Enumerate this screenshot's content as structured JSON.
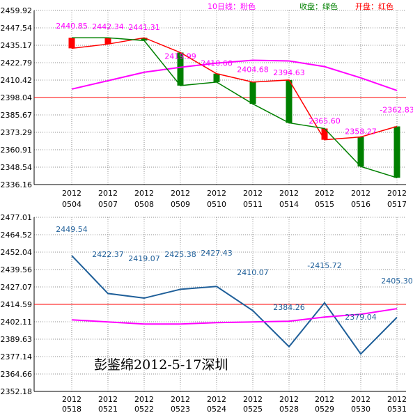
{
  "colors": {
    "up": "#ff0000",
    "down": "#008000",
    "ma10": "#ff00ff",
    "close_line": "#008000",
    "open_line": "#ff0000",
    "ref_line": "#ff0000",
    "bottom_line": "#1f5f99",
    "bottom_label": "#1f5f99",
    "grid": "#8c8c8c"
  },
  "signature": "彭鉴绵2012-5-17深圳",
  "chart_data": [
    {
      "type": "candlestick",
      "legend": [
        {
          "label": "10日线：粉色",
          "color": "#ff00ff"
        },
        {
          "label": "收盘：绿色",
          "color": "#008000"
        },
        {
          "label": "开盘：红色",
          "color": "#ff0000"
        }
      ],
      "ylim": [
        2336.16,
        2459.92
      ],
      "yticks": [
        "2459.92",
        "2447.54",
        "2435.17",
        "2422.79",
        "2410.42",
        "2398.04",
        "2385.67",
        "2373.29",
        "2360.91",
        "2348.54",
        "2336.16"
      ],
      "x": [
        "2012 0504",
        "2012 0507",
        "2012 0508",
        "2012 0509",
        "2012 0510",
        "2012 0511",
        "2012 0514",
        "2012 0515",
        "2012 0516",
        "2012 0517"
      ],
      "open": [
        2433.0,
        2436.0,
        2440.5,
        2430.0,
        2415.0,
        2409.0,
        2410.5,
        2368.0,
        2370.0,
        2377.5
      ],
      "close": [
        2440.5,
        2440.5,
        2438.5,
        2406.5,
        2409.0,
        2393.5,
        2380.0,
        2376.0,
        2349.0,
        2341.0
      ],
      "ma10": [
        2404.0,
        2410.0,
        2416.0,
        2419.5,
        2422.5,
        2424.5,
        2424.0,
        2420.0,
        2412.0,
        2403.0
      ],
      "reference": 2398.04,
      "labels": [
        {
          "text": "2440.85",
          "i": 0,
          "v": 2447.0
        },
        {
          "text": "2442.34",
          "i": 1,
          "v": 2446.5
        },
        {
          "text": "2441.31",
          "i": 2,
          "v": 2446.0
        },
        {
          "text": "2419.99",
          "i": 3,
          "v": 2425.5
        },
        {
          "text": "2410.66",
          "i": 4,
          "v": 2420.5
        },
        {
          "text": "2404.68",
          "i": 5,
          "v": 2416.0
        },
        {
          "text": "2394.63",
          "i": 6,
          "v": 2414.0
        },
        {
          "text": "2365.60",
          "i": 7,
          "v": 2379.5
        },
        {
          "text": "2358.27",
          "i": 8,
          "v": 2372.0
        },
        {
          "text": "-2362.83",
          "i": 9,
          "v": 2387.5
        }
      ]
    },
    {
      "type": "line",
      "ylim": [
        2352.18,
        2477.01
      ],
      "yticks": [
        "2477.01",
        "2464.52",
        "2452.04",
        "2439.56",
        "2427.07",
        "2414.59",
        "2402.11",
        "2389.63",
        "2377.14",
        "2364.66",
        "2352.18"
      ],
      "x": [
        "2012 0518",
        "2012 0521",
        "2012 0522",
        "2012 0523",
        "2012 0524",
        "2012 0525",
        "2012 0528",
        "2012 0529",
        "2012 0530",
        "2012 0531"
      ],
      "series": [
        {
          "values": [
            2449.54,
            2422.37,
            2419.07,
            2425.38,
            2427.43,
            2410.07,
            2384.26,
            2415.72,
            2379.04,
            2405.3
          ]
        },
        {
          "values": [
            2403.5,
            2402.0,
            2400.5,
            2400.5,
            2401.5,
            2402.0,
            2402.5,
            2405.5,
            2407.5,
            2411.5
          ]
        }
      ],
      "reference": 2414.59,
      "labels": [
        {
          "text": "2449.54",
          "i": 0,
          "v": 2466.5
        },
        {
          "text": "2422.37",
          "i": 1,
          "v": 2448.5
        },
        {
          "text": "2419.07",
          "i": 2,
          "v": 2445.5
        },
        {
          "text": "2425.38",
          "i": 3,
          "v": 2448.5
        },
        {
          "text": "2427.43",
          "i": 4,
          "v": 2449.5
        },
        {
          "text": "2410.07",
          "i": 5,
          "v": 2435.5
        },
        {
          "text": "2384.26",
          "i": 6,
          "v": 2410.5
        },
        {
          "text": "-2415.72",
          "i": 7,
          "v": 2440.5
        },
        {
          "text": "2379.04",
          "i": 8,
          "v": 2403.5
        },
        {
          "text": "2405.30",
          "i": 9,
          "v": 2429.5
        }
      ]
    }
  ]
}
